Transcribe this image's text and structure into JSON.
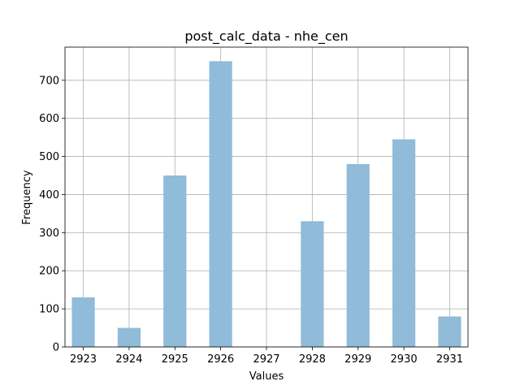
{
  "chart_data": {
    "type": "bar",
    "title": "post_calc_data - nhe_cen",
    "xlabel": "Values",
    "ylabel": "Frequency",
    "x": [
      2923,
      2924,
      2925,
      2926,
      2927,
      2928,
      2929,
      2930,
      2931
    ],
    "x_tick_labels": [
      "2923",
      "2924",
      "2925",
      "2926",
      "2927",
      "2928",
      "2929",
      "2930",
      "2931"
    ],
    "values": [
      130,
      50,
      450,
      750,
      0,
      330,
      480,
      545,
      80
    ],
    "xlim": [
      2922.6,
      2931.4
    ],
    "ylim": [
      0,
      787
    ],
    "y_ticks": [
      0,
      100,
      200,
      300,
      400,
      500,
      600,
      700
    ],
    "y_tick_labels": [
      "0",
      "100",
      "200",
      "300",
      "400",
      "500",
      "600",
      "700"
    ],
    "bar_color": "#90bbd9",
    "grid": true
  }
}
